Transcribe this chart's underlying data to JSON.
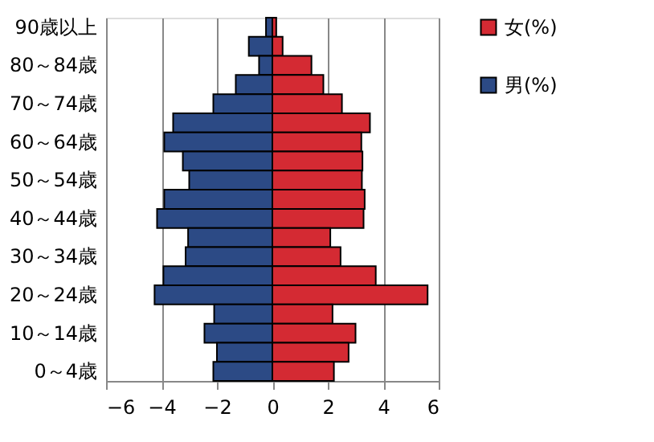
{
  "chart_data": {
    "type": "bar",
    "orientation": "horizontal",
    "categories": [
      "90歳以上",
      null,
      "80～84歳",
      null,
      "70～74歳",
      null,
      "60～64歳",
      null,
      "50～54歳",
      null,
      "40～44歳",
      null,
      "30～34歳",
      null,
      "20～24歳",
      null,
      "10～14歳",
      null,
      "0～4歳"
    ],
    "series": [
      {
        "name": "女(%)",
        "color": "#d42a33",
        "values": [
          0.14,
          0.37,
          1.41,
          1.84,
          2.51,
          3.52,
          3.21,
          3.25,
          3.23,
          3.33,
          3.29,
          2.09,
          2.46,
          3.73,
          5.6,
          2.17,
          3.0,
          2.75,
          2.22
        ]
      },
      {
        "name": "男(%)",
        "color": "#2c4a85",
        "values": [
          -0.23,
          -0.85,
          -0.48,
          -1.32,
          -2.13,
          -3.58,
          -3.9,
          -3.23,
          -3.0,
          -3.9,
          -4.16,
          -3.04,
          -3.13,
          -3.93,
          -4.25,
          -2.1,
          -2.45,
          -2.0,
          -2.13
        ]
      }
    ],
    "xlim": [
      -6,
      6
    ],
    "xticks": [
      -6,
      -4,
      -2,
      0,
      2,
      4,
      6
    ],
    "grid": "x",
    "legend": "right",
    "stacked": true
  }
}
